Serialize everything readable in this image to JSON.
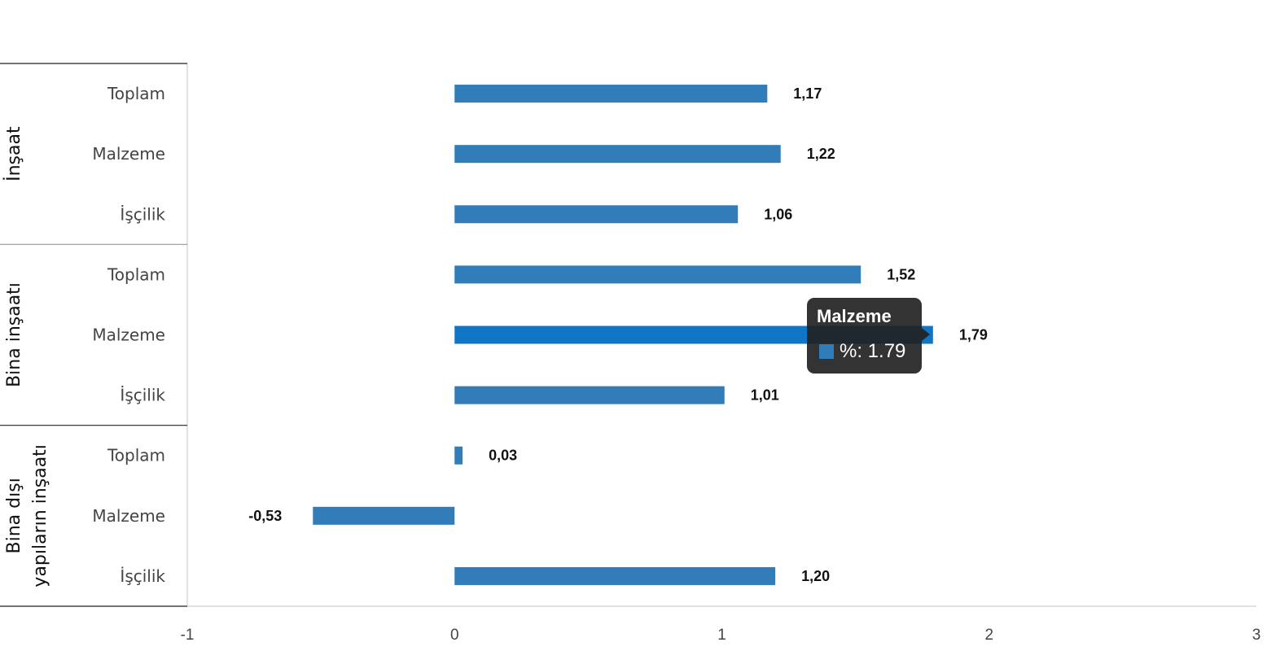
{
  "chart_data": {
    "type": "bar",
    "orientation": "horizontal",
    "groups": [
      {
        "name": "İnşaat",
        "categories": [
          "Toplam",
          "Malzeme",
          "İşçilik"
        ],
        "values": [
          1.17,
          1.22,
          1.06
        ],
        "labels": [
          "1,17",
          "1,22",
          "1,06"
        ]
      },
      {
        "name": "Bina inşaatı",
        "categories": [
          "Toplam",
          "Malzeme",
          "İşçilik"
        ],
        "values": [
          1.52,
          1.79,
          1.01
        ],
        "labels": [
          "1,52",
          "1,79",
          "1,01"
        ]
      },
      {
        "name": "Bina dışı yapıların inşaatı",
        "name_lines": [
          "Bina dışı",
          "yapıların inşaatı"
        ],
        "categories": [
          "Toplam",
          "Malzeme",
          "İşçilik"
        ],
        "values": [
          0.03,
          -0.53,
          1.2
        ],
        "labels": [
          "0,03",
          "-0,53",
          "1,20"
        ]
      }
    ],
    "xlim": [
      -1,
      3
    ],
    "xticks": [
      -1,
      0,
      1,
      2,
      3
    ],
    "xtick_labels": [
      "-1",
      "0",
      "1",
      "2",
      "3"
    ],
    "grid": false,
    "legend": "none",
    "colors": {
      "bar": "#317dba",
      "bar_hover": "#0f75c4"
    }
  },
  "tooltip": {
    "title": "Malzeme",
    "value_text": "%: 1.79",
    "swatch_color": "#317dba",
    "hovered_group": 1,
    "hovered_index": 1
  }
}
